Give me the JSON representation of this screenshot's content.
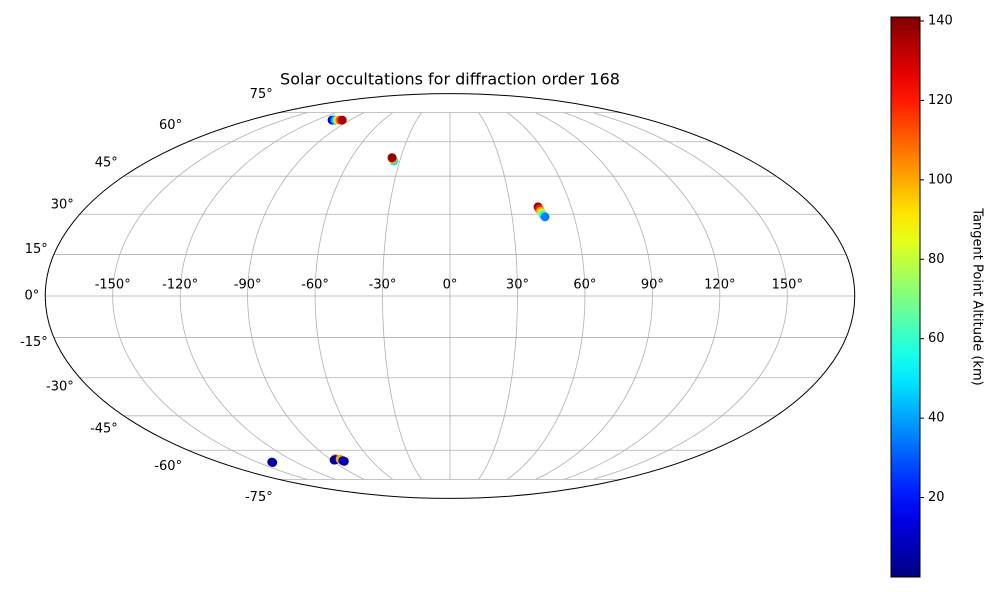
{
  "chart_data": {
    "type": "scatter",
    "projection": "mollweide",
    "title": "Solar occultations for diffraction order 168",
    "x": [
      -106,
      -104.5,
      -103,
      -101,
      -99,
      -97,
      -33.5,
      -34.5,
      -35.3,
      43.6,
      44.0,
      44.4,
      44.8,
      45.2,
      45.9,
      -138.7,
      -138.7,
      -86,
      -88,
      -86.5,
      -82.5,
      -81.5,
      -82
    ],
    "y": [
      70.8,
      70.8,
      70.8,
      70.8,
      70.8,
      70.8,
      51.4,
      52.1,
      52.8,
      32.8,
      32.0,
      31.2,
      30.4,
      29.7,
      29.0,
      -65.7,
      -65.9,
      -64.0,
      -64.7,
      -64.5,
      -64.2,
      -65.3,
      -65.0
    ],
    "c": [
      5,
      25,
      45,
      90,
      110,
      135,
      50,
      100,
      138,
      138,
      120,
      100,
      80,
      60,
      35,
      3,
      5,
      105,
      3,
      5,
      100,
      2,
      8
    ],
    "colormap": "jet",
    "clim": [
      0,
      141
    ],
    "cticks": [
      20,
      40,
      60,
      80,
      100,
      120,
      140
    ],
    "colorbar_label": "Tangent Point Altitude (km)",
    "xlim": [
      -180,
      180
    ],
    "ylim": [
      -90,
      90
    ],
    "xticks": [
      {
        "value": -150,
        "label": "-150°"
      },
      {
        "value": -120,
        "label": "-120°"
      },
      {
        "value": -90,
        "label": "-90°"
      },
      {
        "value": -60,
        "label": "-60°"
      },
      {
        "value": -30,
        "label": "-30°"
      },
      {
        "value": 0,
        "label": "0°"
      },
      {
        "value": 30,
        "label": "30°"
      },
      {
        "value": 60,
        "label": "60°"
      },
      {
        "value": 90,
        "label": "90°"
      },
      {
        "value": 120,
        "label": "120°"
      },
      {
        "value": 150,
        "label": "150°"
      }
    ],
    "yticks": [
      {
        "value": -75,
        "label": "-75°"
      },
      {
        "value": -60,
        "label": "-60°"
      },
      {
        "value": -45,
        "label": "-45°"
      },
      {
        "value": -30,
        "label": "-30°"
      },
      {
        "value": -15,
        "label": "-15°"
      },
      {
        "value": 0,
        "label": "0°"
      },
      {
        "value": 15,
        "label": "15°"
      },
      {
        "value": 30,
        "label": "30°"
      },
      {
        "value": 45,
        "label": "45°"
      },
      {
        "value": 60,
        "label": "60°"
      },
      {
        "value": 75,
        "label": "75°"
      }
    ],
    "grid": true
  }
}
